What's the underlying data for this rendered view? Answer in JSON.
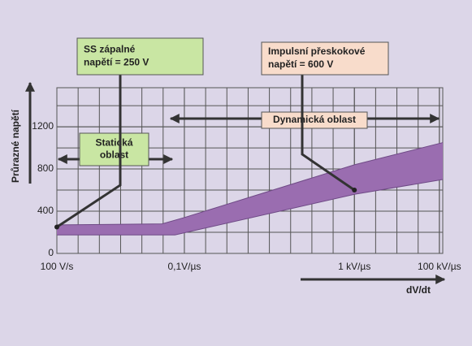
{
  "chart_data": {
    "type": "area",
    "y_label": "Průrazné napětí",
    "x_label": "dV/dt",
    "xscale": "log",
    "xlim": [
      0.0001,
      120000
    ],
    "ylim": [
      0,
      1570
    ],
    "xticks": [
      {
        "value": 0.0001,
        "label": "100 V/s"
      },
      {
        "value": 0.1,
        "label": "0,1V/µs"
      },
      {
        "value": 1000,
        "label": "1 kV/µs"
      },
      {
        "value": 100000,
        "label": "100 kV/µs"
      }
    ],
    "yticks": [
      0,
      400,
      800,
      1200
    ],
    "grid": true,
    "band": {
      "color": "#9a6db0",
      "edge_color": "#6f4a86",
      "upper": {
        "x": [
          0.0001,
          0.03,
          0.1,
          1000,
          120000
        ],
        "values": [
          270,
          280,
          340,
          840,
          1050
        ]
      },
      "lower": {
        "x": [
          0.0001,
          0.06,
          1000,
          120000
        ],
        "values": [
          175,
          175,
          560,
          700
        ]
      }
    },
    "annotations": [
      {
        "lines": [
          "SS zápalné",
          "napětí = 250 V"
        ],
        "x": 0.0001,
        "y": 250,
        "color": "#c9e6a3"
      },
      {
        "lines": [
          "Impulsní přeskokové",
          "napětí = 600 V"
        ],
        "x": 1000,
        "y": 600,
        "color": "#f8dccb"
      }
    ],
    "regions": [
      {
        "lines": [
          "Statická",
          "oblast"
        ],
        "color": "#c9e6a3"
      },
      {
        "lines": [
          "Dynamická oblast"
        ],
        "color": "#f8dccb"
      }
    ]
  }
}
